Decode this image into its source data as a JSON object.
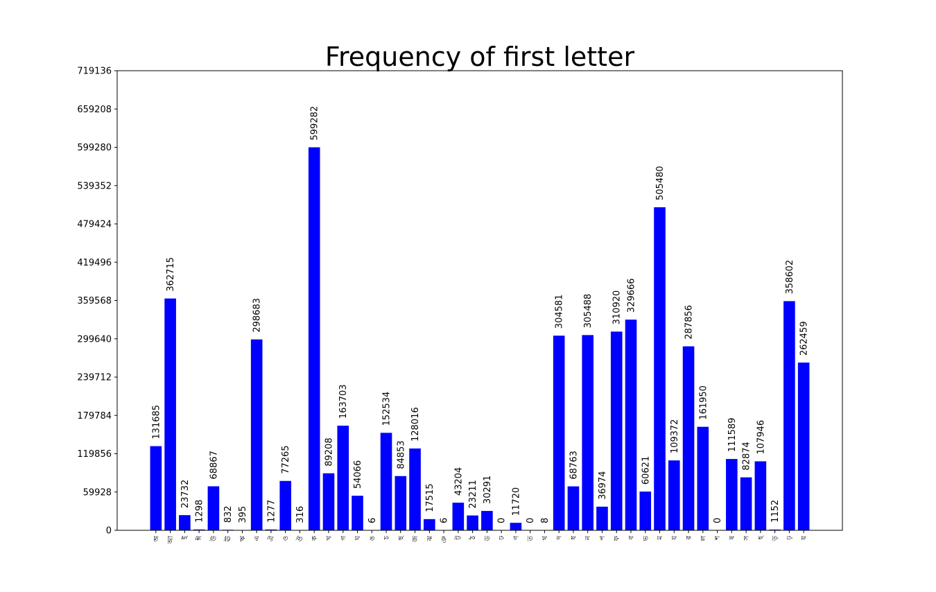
{
  "chart_data": {
    "type": "bar",
    "title": "Frequency of first letter",
    "xlabel": "",
    "ylabel": "",
    "ylim": [
      0,
      719136
    ],
    "yticks": [
      "0",
      "59928",
      "119856",
      "179784",
      "239712",
      "299640",
      "359568",
      "419496",
      "479424",
      "539352",
      "599280",
      "659208",
      "719136"
    ],
    "ytick_values": [
      0,
      59928,
      119856,
      179784,
      239712,
      299640,
      359568,
      419496,
      479424,
      539352,
      599280,
      659208,
      719136
    ],
    "grid": false,
    "legend": "none",
    "bar_color": "#0000ff",
    "categories": [
      "অ",
      "আ",
      "ই",
      "ঈ",
      "উ",
      "ঊ",
      "ঋ",
      "এ",
      "ঐ",
      "ও",
      "ঔ",
      "ক",
      "খ",
      "গ",
      "ঘ",
      "ঙ",
      "চ",
      "ছ",
      "জ",
      "ঝ",
      "ঞ",
      "ট",
      "ঠ",
      "ড",
      "ঢ",
      "ণ",
      "ত",
      "থ",
      "দ",
      "ধ",
      "ন",
      "প",
      "ফ",
      "ব",
      "ভ",
      "ম",
      "য",
      "র",
      "ল",
      "শ",
      "ষ",
      "স",
      "হ",
      "ড়",
      "ঢ়",
      "য়"
    ],
    "values": [
      131685,
      362715,
      23732,
      1298,
      68867,
      832,
      395,
      298683,
      1277,
      77265,
      316,
      599282,
      89208,
      163703,
      54066,
      6,
      152534,
      84853,
      128016,
      17515,
      6,
      43204,
      23211,
      30291,
      0,
      11720,
      0,
      8,
      304581,
      68763,
      305488,
      36974,
      310920,
      329666,
      60621,
      505480,
      109372,
      287856,
      161950,
      0,
      111589,
      82874,
      107946,
      1152,
      358602,
      262459
    ],
    "display_order_note": ""
  }
}
